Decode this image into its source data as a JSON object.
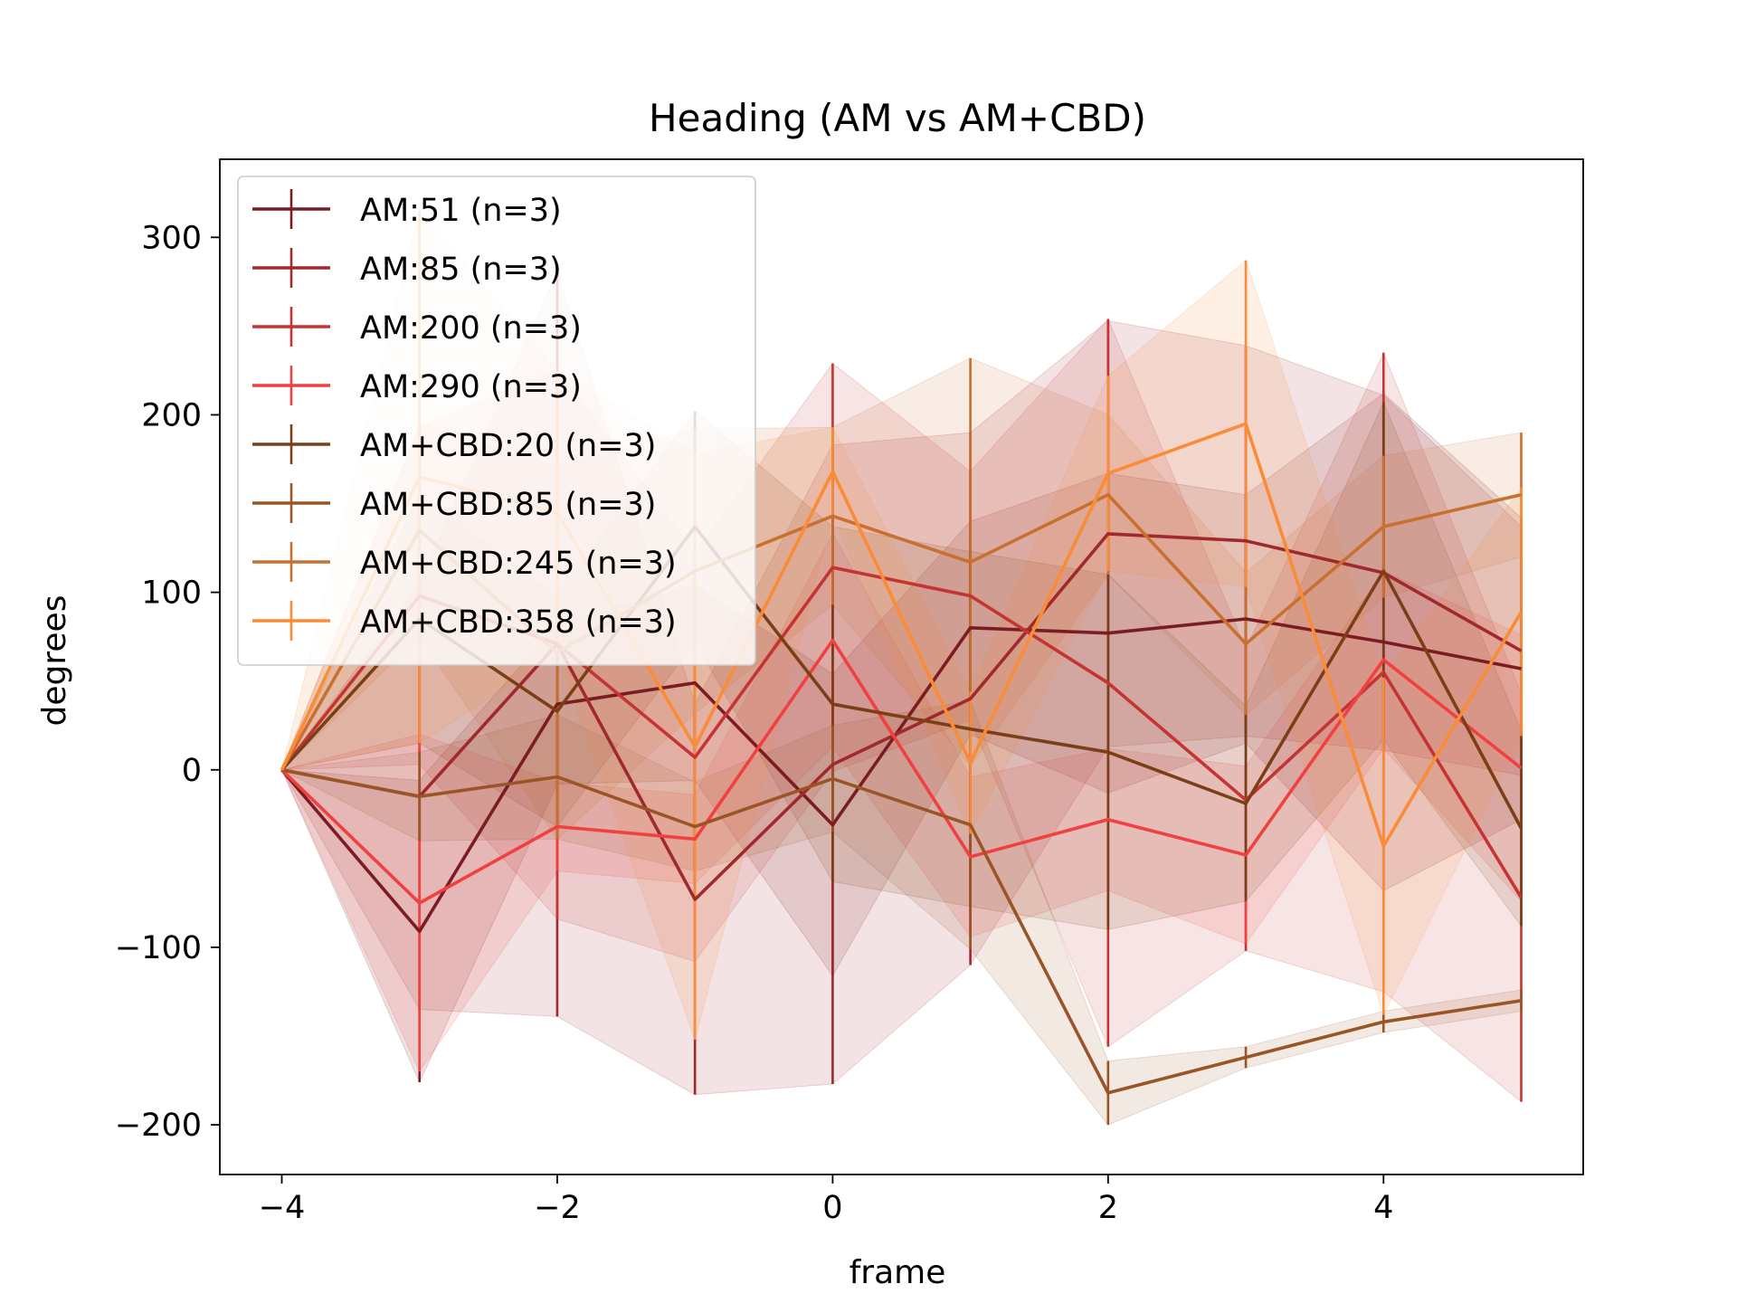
{
  "chart_data": {
    "type": "line",
    "title": "Heading (AM vs AM+CBD)",
    "xlabel": "frame",
    "ylabel": "degrees",
    "xlim": [
      -4.45,
      5.45
    ],
    "ylim": [
      -228,
      344
    ],
    "xticks": [
      -4,
      -2,
      0,
      2,
      4
    ],
    "xtick_labels": [
      "−4",
      "−2",
      "0",
      "2",
      "4"
    ],
    "yticks": [
      -200,
      -100,
      0,
      100,
      200,
      300
    ],
    "ytick_labels": [
      "−200",
      "−100",
      "0",
      "100",
      "200",
      "300"
    ],
    "grid": false,
    "legend_position": "top-left",
    "x": [
      -4,
      -3,
      -2,
      -1,
      0,
      1,
      2,
      3,
      4,
      5
    ],
    "series": [
      {
        "name": "AM:51 (n=3)",
        "color": "#7b1c22",
        "values": [
          0,
          -91,
          37,
          49,
          -31,
          80,
          77,
          85,
          72,
          57
        ],
        "err": [
          0,
          85,
          45,
          55,
          85,
          60,
          90,
          70,
          140,
          85
        ]
      },
      {
        "name": "AM:85 (n=3)",
        "color": "#a0292d",
        "values": [
          0,
          -15,
          71,
          -73,
          3,
          40,
          133,
          129,
          111,
          67
        ],
        "err": [
          0,
          120,
          210,
          110,
          180,
          150,
          120,
          110,
          100,
          70
        ]
      },
      {
        "name": "AM:200 (n=3)",
        "color": "#c53433",
        "values": [
          0,
          98,
          71,
          7,
          114,
          98,
          49,
          -17,
          55,
          -72
        ],
        "err": [
          0,
          95,
          155,
          115,
          115,
          70,
          205,
          85,
          180,
          115
        ]
      },
      {
        "name": "AM:290 (n=3)",
        "color": "#f04040",
        "values": [
          0,
          -75,
          -32,
          -39,
          73,
          -49,
          -28,
          -48,
          62,
          1
        ],
        "err": [
          0,
          95,
          25,
          25,
          60,
          45,
          40,
          50,
          50,
          75
        ]
      },
      {
        "name": "AM+CBD:20 (n=3)",
        "color": "#7b3f18",
        "values": [
          0,
          85,
          33,
          137,
          37,
          23,
          10,
          -19,
          112,
          -33
        ],
        "err": [
          0,
          70,
          65,
          65,
          100,
          100,
          100,
          55,
          95,
          55
        ]
      },
      {
        "name": "AM+CBD:85 (n=3)",
        "color": "#9a5526",
        "values": [
          0,
          -15,
          -4,
          -32,
          -5,
          -31,
          -182,
          -162,
          -142,
          -130
        ],
        "err": [
          0,
          25,
          35,
          25,
          30,
          70,
          18,
          6,
          6,
          6
        ]
      },
      {
        "name": "AM+CBD:245 (n=3)",
        "color": "#c8702f",
        "values": [
          0,
          135,
          66,
          112,
          143,
          117,
          155,
          71,
          137,
          155
        ],
        "err": [
          0,
          60,
          105,
          80,
          50,
          115,
          45,
          40,
          40,
          35
        ]
      },
      {
        "name": "AM+CBD:358 (n=3)",
        "color": "#fa8c37",
        "values": [
          0,
          165,
          145,
          13,
          168,
          4,
          167,
          195,
          -43,
          89
        ],
        "err": [
          0,
          150,
          80,
          165,
          25,
          40,
          55,
          92,
          95,
          70
        ]
      }
    ]
  }
}
